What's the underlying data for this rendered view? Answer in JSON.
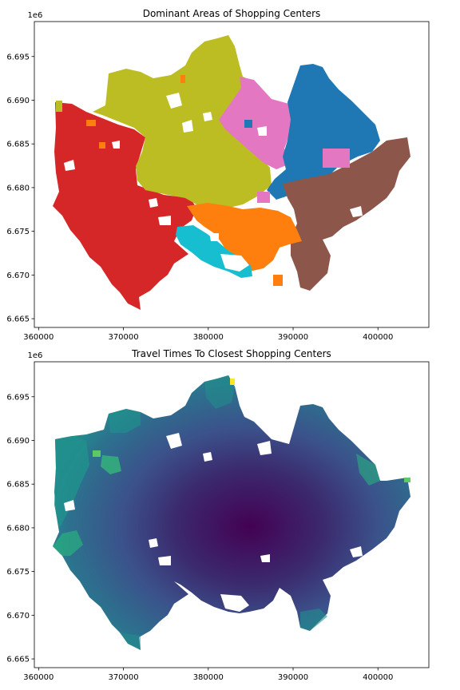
{
  "figure": {
    "panels": [
      {
        "title": "Dominant Areas of Shopping Centers",
        "y_offset_text": "1e6",
        "x_ticks": [
          "360000",
          "370000",
          "380000",
          "390000",
          "400000"
        ],
        "y_ticks": [
          "6.665",
          "6.670",
          "6.675",
          "6.680",
          "6.685",
          "6.690",
          "6.695"
        ]
      },
      {
        "title": "Travel Times To Closest Shopping Centers",
        "y_offset_text": "1e6",
        "x_ticks": [
          "360000",
          "370000",
          "380000",
          "390000",
          "400000"
        ],
        "y_ticks": [
          "6.665",
          "6.670",
          "6.675",
          "6.680",
          "6.685",
          "6.690",
          "6.695"
        ]
      }
    ]
  },
  "map_data": {
    "xlim": [
      359500,
      406000
    ],
    "ylim": [
      6.664,
      6.699
    ],
    "x_tick_values": [
      360000,
      370000,
      380000,
      390000,
      400000
    ],
    "y_tick_values": [
      6.665,
      6.67,
      6.675,
      6.68,
      6.685,
      6.69,
      6.695
    ],
    "dominant_area_colors": {
      "red": "#d62728",
      "olive": "#bcbd22",
      "pink": "#e377c2",
      "blue": "#1f77b4",
      "brown": "#8c564b",
      "orange": "#ff7f0e",
      "cyan": "#17becf"
    },
    "travel_time_colormap": "viridis",
    "travel_time_colors": {
      "shortest": "#440154",
      "short": "#3b528b",
      "medium": "#21908d",
      "long": "#5dc962",
      "longest": "#fde725"
    }
  }
}
